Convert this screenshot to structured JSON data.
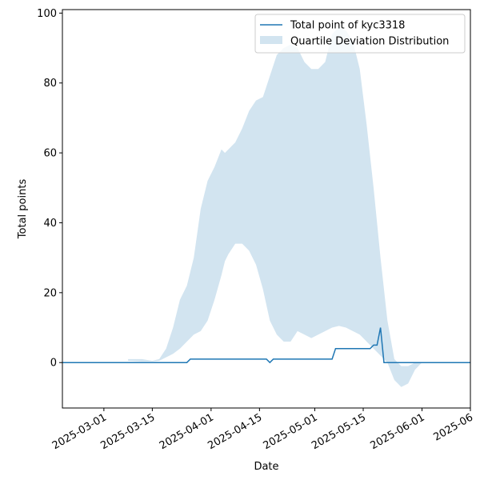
{
  "chart_data": {
    "type": "line",
    "title": "",
    "xlabel": "Date",
    "ylabel": "Total points",
    "xlim": [
      "2025-02-17",
      "2025-06-15"
    ],
    "ylim": [
      -13,
      101
    ],
    "grid": false,
    "legend_position": "top-right",
    "x_ticks": [
      "2025-03-01",
      "2025-03-15",
      "2025-04-01",
      "2025-04-15",
      "2025-05-01",
      "2025-05-15",
      "2025-06-01",
      "2025-06-15"
    ],
    "x_tick_labels": [
      "2025-03-01",
      "2025-03-15",
      "2025-04-01",
      "2025-04-15",
      "2025-05-01",
      "2025-05-15",
      "2025-06-01",
      "2025-06"
    ],
    "y_ticks": [
      0,
      20,
      40,
      60,
      80,
      100
    ],
    "series": [
      {
        "name": "Total point of kyc3318",
        "kind": "line",
        "color": "#1f77b4",
        "x": [
          "2025-02-17",
          "2025-03-25",
          "2025-03-26",
          "2025-04-17",
          "2025-04-18",
          "2025-04-19",
          "2025-05-06",
          "2025-05-07",
          "2025-05-17",
          "2025-05-18",
          "2025-05-19",
          "2025-05-20",
          "2025-05-21",
          "2025-06-15"
        ],
        "y": [
          0,
          0,
          1,
          1,
          0,
          1,
          1,
          4,
          4,
          5,
          5,
          10,
          0,
          0
        ]
      },
      {
        "name": "Quartile Deviation Distribution",
        "kind": "band",
        "color": "#1f77b4",
        "alpha": 0.2,
        "x": [
          "2025-03-08",
          "2025-03-12",
          "2025-03-15",
          "2025-03-17",
          "2025-03-19",
          "2025-03-21",
          "2025-03-23",
          "2025-03-25",
          "2025-03-27",
          "2025-03-29",
          "2025-03-31",
          "2025-04-02",
          "2025-04-04",
          "2025-04-05",
          "2025-04-06",
          "2025-04-08",
          "2025-04-10",
          "2025-04-12",
          "2025-04-14",
          "2025-04-16",
          "2025-04-18",
          "2025-04-20",
          "2025-04-22",
          "2025-04-24",
          "2025-04-26",
          "2025-04-28",
          "2025-04-30",
          "2025-05-02",
          "2025-05-04",
          "2025-05-06",
          "2025-05-08",
          "2025-05-10",
          "2025-05-12",
          "2025-05-14",
          "2025-05-16",
          "2025-05-18",
          "2025-05-20",
          "2025-05-22",
          "2025-05-24",
          "2025-05-26",
          "2025-05-28",
          "2025-05-30",
          "2025-06-01"
        ],
        "upper": [
          1,
          1,
          0.5,
          1,
          4,
          10,
          18,
          22,
          30,
          44,
          52,
          56,
          61,
          60,
          61,
          63,
          67,
          72,
          75,
          76,
          82,
          88,
          90,
          91,
          90,
          86,
          84,
          84,
          86,
          94,
          96,
          95,
          92,
          84,
          68,
          50,
          30,
          12,
          1,
          -1,
          -1,
          0,
          0
        ],
        "lower": [
          0.5,
          0.3,
          0.3,
          0.5,
          1.5,
          2.5,
          4,
          6,
          8,
          9,
          12,
          18,
          25,
          29,
          31,
          34,
          34,
          32,
          28,
          21,
          12,
          8,
          6,
          6,
          9,
          8,
          7,
          8,
          9,
          10,
          10.5,
          10,
          9,
          8,
          6,
          4,
          2,
          0,
          -5,
          -7,
          -6,
          -2,
          0
        ]
      }
    ]
  }
}
